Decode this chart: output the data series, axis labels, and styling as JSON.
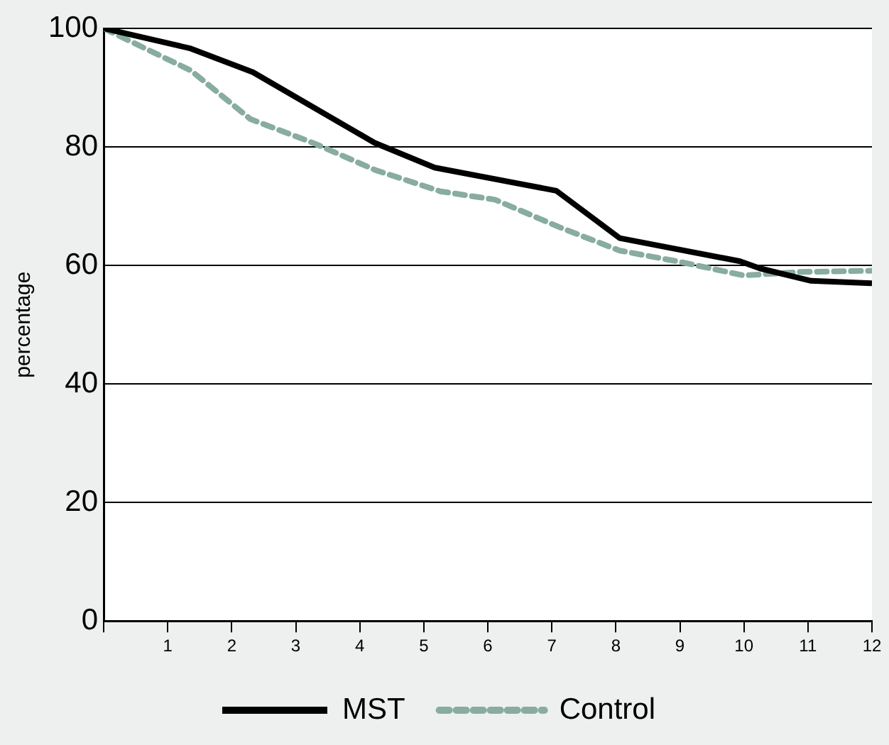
{
  "chart_data": {
    "type": "line",
    "ylabel": "percentage",
    "xlim": [
      0,
      12
    ],
    "xticks": [
      {
        "value": 0,
        "label": null
      },
      1,
      2,
      3,
      4,
      5,
      6,
      7,
      8,
      9,
      10,
      11,
      12
    ],
    "ylim": [
      0,
      100
    ],
    "yticks": [
      0,
      20,
      40,
      60,
      80,
      100
    ],
    "grid": "y",
    "legend": "bottom",
    "marker": "none",
    "series": [
      {
        "name": "MST",
        "color": "#000000",
        "line_style": "solid",
        "x": [
          0,
          1.36,
          2.33,
          4.23,
          5.17,
          7.07,
          8.06,
          9.94,
          10.25,
          11.05,
          12
        ],
        "values": [
          100,
          96.6,
          92.6,
          80.7,
          76.5,
          72.6,
          64.6,
          60.7,
          59.5,
          57.4,
          57.0
        ]
      },
      {
        "name": "Control",
        "color": "#88aca0",
        "line_style": "dashed",
        "x": [
          0,
          1.36,
          2.29,
          3.31,
          4.24,
          5.26,
          6.11,
          7.13,
          8.06,
          9.0,
          10.0,
          10.88,
          12
        ],
        "values": [
          100,
          92.9,
          84.7,
          80.5,
          76.1,
          72.5,
          71.1,
          66.4,
          62.5,
          60.6,
          58.3,
          58.9,
          59.1
        ]
      }
    ]
  }
}
